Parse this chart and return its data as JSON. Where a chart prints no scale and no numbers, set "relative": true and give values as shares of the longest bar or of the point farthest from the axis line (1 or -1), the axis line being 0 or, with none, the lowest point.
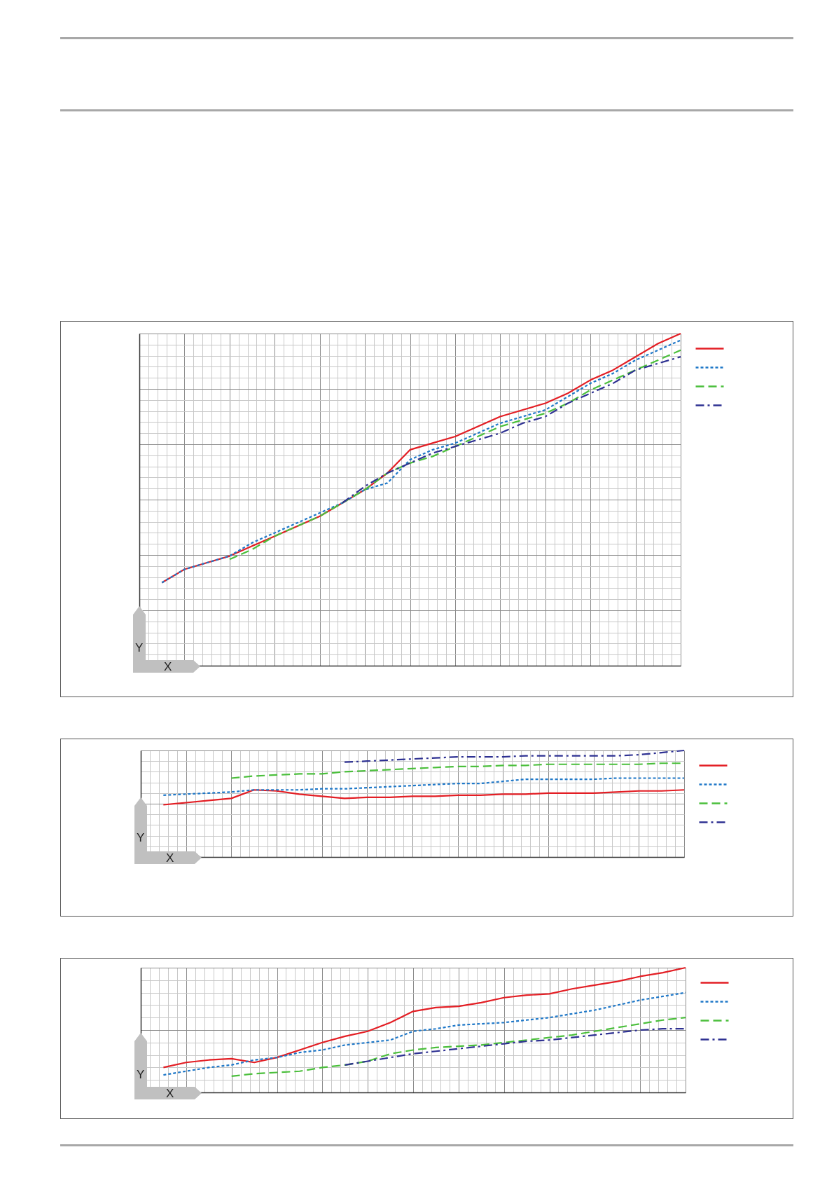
{
  "chart_data": [
    {
      "type": "line",
      "relative": true,
      "xlabel": "X",
      "ylabel": "Y",
      "grid": true,
      "tick_labels": false,
      "categories": [
        null,
        null,
        null,
        null,
        null,
        null,
        null,
        null,
        null,
        null,
        null,
        null,
        null,
        null,
        null,
        null,
        null,
        null,
        null,
        null,
        null,
        null,
        null,
        null,
        null
      ],
      "series": [
        {
          "color": "#e31e24",
          "line_style": "solid",
          "values": [
            null,
            0.25,
            0.29,
            0.31,
            0.33,
            0.36,
            0.39,
            0.42,
            0.45,
            0.49,
            0.53,
            0.58,
            0.65,
            0.67,
            0.69,
            0.72,
            0.75,
            0.77,
            0.79,
            0.82,
            0.86,
            0.89,
            0.93,
            0.97,
            1
          ]
        },
        {
          "color": "#1f78c8",
          "line_style": "dotted",
          "values": [
            null,
            0.25,
            0.29,
            0.31,
            0.33,
            0.37,
            0.4,
            0.43,
            0.46,
            0.49,
            0.53,
            0.55,
            0.62,
            0.65,
            0.67,
            0.7,
            0.73,
            0.75,
            0.77,
            0.81,
            0.85,
            0.88,
            0.92,
            0.95,
            0.98
          ]
        },
        {
          "color": "#4bbf3c",
          "line_style": "dashed",
          "values": [
            null,
            null,
            null,
            null,
            0.32,
            0.35,
            0.39,
            0.42,
            0.45,
            0.49,
            0.53,
            0.58,
            0.61,
            0.63,
            0.66,
            0.69,
            0.72,
            0.74,
            0.76,
            0.79,
            0.83,
            0.86,
            0.89,
            0.92,
            0.95
          ]
        },
        {
          "color": "#2e3192",
          "line_style": "dashdot",
          "values": [
            null,
            null,
            null,
            null,
            null,
            null,
            null,
            null,
            null,
            0.49,
            0.54,
            0.58,
            0.61,
            0.64,
            0.66,
            0.68,
            0.7,
            0.73,
            0.75,
            0.79,
            0.82,
            0.85,
            0.89,
            0.91,
            0.93
          ]
        }
      ]
    },
    {
      "type": "line",
      "relative": true,
      "xlabel": "X",
      "ylabel": "Y",
      "grid": true,
      "tick_labels": false,
      "categories": [
        null,
        null,
        null,
        null,
        null,
        null,
        null,
        null,
        null,
        null,
        null,
        null,
        null,
        null,
        null,
        null,
        null,
        null,
        null,
        null,
        null,
        null,
        null,
        null,
        null
      ],
      "series": [
        {
          "color": "#e31e24",
          "line_style": "solid",
          "values": [
            null,
            0.49,
            0.51,
            0.53,
            0.55,
            0.63,
            0.62,
            0.59,
            0.57,
            0.55,
            0.56,
            0.56,
            0.57,
            0.57,
            0.58,
            0.58,
            0.59,
            0.59,
            0.6,
            0.6,
            0.6,
            0.61,
            0.62,
            0.62,
            0.63
          ]
        },
        {
          "color": "#1f78c8",
          "line_style": "dotted",
          "values": [
            null,
            0.58,
            0.59,
            0.6,
            0.61,
            0.63,
            0.63,
            0.63,
            0.64,
            0.64,
            0.65,
            0.66,
            0.67,
            0.68,
            0.69,
            0.69,
            0.71,
            0.73,
            0.73,
            0.73,
            0.73,
            0.74,
            0.74,
            0.74,
            0.74
          ]
        },
        {
          "color": "#4bbf3c",
          "line_style": "dashed",
          "values": [
            null,
            null,
            null,
            null,
            0.74,
            0.76,
            0.77,
            0.78,
            0.78,
            0.8,
            0.81,
            0.82,
            0.83,
            0.84,
            0.85,
            0.85,
            0.86,
            0.86,
            0.87,
            0.87,
            0.87,
            0.87,
            0.87,
            0.88,
            0.88
          ]
        },
        {
          "color": "#2e3192",
          "line_style": "dashdot",
          "values": [
            null,
            null,
            null,
            null,
            null,
            null,
            null,
            null,
            null,
            0.89,
            0.9,
            0.91,
            0.92,
            0.93,
            0.94,
            0.94,
            0.94,
            0.95,
            0.95,
            0.95,
            0.95,
            0.95,
            0.96,
            0.98,
            1
          ]
        }
      ]
    },
    {
      "type": "line",
      "relative": true,
      "xlabel": "X",
      "ylabel": "Y",
      "grid": true,
      "tick_labels": false,
      "categories": [
        null,
        null,
        null,
        null,
        null,
        null,
        null,
        null,
        null,
        null,
        null,
        null,
        null,
        null,
        null,
        null,
        null,
        null,
        null,
        null,
        null,
        null,
        null,
        null,
        null
      ],
      "series": [
        {
          "color": "#e31e24",
          "line_style": "solid",
          "values": [
            null,
            0.2,
            0.24,
            0.26,
            0.27,
            0.24,
            0.28,
            0.34,
            0.4,
            0.45,
            0.49,
            0.56,
            0.65,
            0.68,
            0.69,
            0.72,
            0.76,
            0.78,
            0.79,
            0.83,
            0.86,
            0.89,
            0.93,
            0.96,
            1
          ]
        },
        {
          "color": "#1f78c8",
          "line_style": "dotted",
          "values": [
            null,
            0.14,
            0.17,
            0.2,
            0.22,
            0.26,
            0.28,
            0.32,
            0.34,
            0.38,
            0.4,
            0.42,
            0.49,
            0.51,
            0.54,
            0.55,
            0.56,
            0.58,
            0.6,
            0.63,
            0.66,
            0.7,
            0.74,
            0.77,
            0.8
          ]
        },
        {
          "color": "#4bbf3c",
          "line_style": "dashed",
          "values": [
            null,
            null,
            null,
            null,
            0.13,
            0.15,
            0.16,
            0.17,
            0.2,
            0.22,
            0.25,
            0.31,
            0.34,
            0.36,
            0.37,
            0.38,
            0.4,
            0.42,
            0.44,
            0.46,
            0.49,
            0.52,
            0.55,
            0.58,
            0.6
          ]
        },
        {
          "color": "#2e3192",
          "line_style": "dashdot",
          "values": [
            null,
            null,
            null,
            null,
            null,
            null,
            null,
            null,
            null,
            0.22,
            0.25,
            0.28,
            0.31,
            0.33,
            0.35,
            0.37,
            0.39,
            0.41,
            0.42,
            0.44,
            0.46,
            0.48,
            0.5,
            0.51,
            0.51
          ]
        }
      ]
    }
  ]
}
